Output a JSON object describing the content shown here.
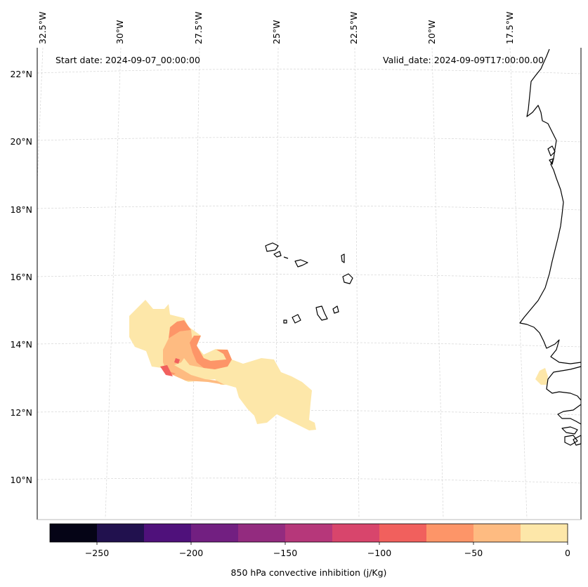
{
  "map": {
    "start_date": "Start date: 2024-09-07_00:00:00",
    "valid_date": "Valid_date: 2024-09-09T17:00:00.00",
    "lat_labels": [
      "22°N",
      "20°N",
      "18°N",
      "16°N",
      "14°N",
      "12°N",
      "10°N"
    ],
    "lon_labels": [
      "32.5°W",
      "30°W",
      "27.5°W",
      "25°W",
      "22.5°W",
      "20°W",
      "17.5°W"
    ],
    "coastline_color": "#000000",
    "gridline_color": "#cccccc"
  },
  "colorbar": {
    "title": "850 hPa convective inhibition (j/Kg)",
    "tick_labels": [
      "−250",
      "−200",
      "−150",
      "−100",
      "−50",
      "0"
    ],
    "levels": [
      -275,
      -250,
      -225,
      -200,
      -175,
      -150,
      -125,
      -100,
      -75,
      -50,
      -25,
      0
    ],
    "colors": [
      "#050416",
      "#21114e",
      "#4f117b",
      "#721f81",
      "#932b7f",
      "#b6377a",
      "#d8456c",
      "#f1605d",
      "#fd9568",
      "#febb81",
      "#fde7a9"
    ]
  }
}
